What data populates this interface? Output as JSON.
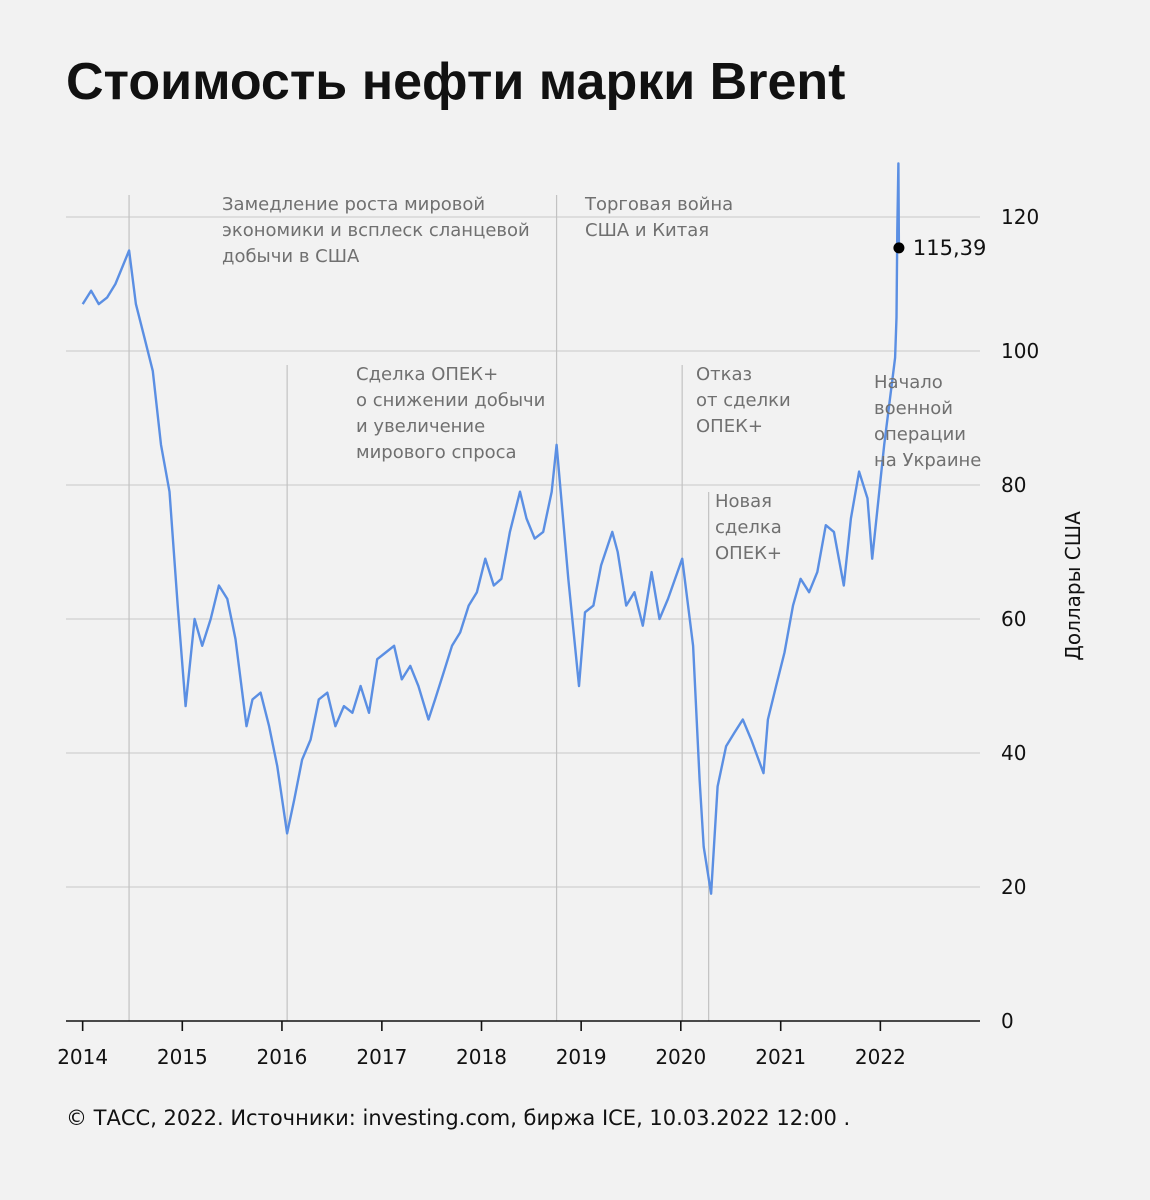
{
  "header": {
    "title": "Стоимость нефти марки Brent"
  },
  "footer": {
    "source": "© ТАСС, 2022. Источники: investing.com, биржа ICE, 10.03.2022 12:00 ."
  },
  "colors": {
    "line": "#5b8fe3",
    "background": "#f2f2f2",
    "grid": "#c8c8c8",
    "annotation": "#707070"
  },
  "chart_data": {
    "type": "line",
    "title": "Стоимость нефти марки Brent",
    "xlabel": "",
    "ylabel": "Доллары США",
    "ylim": [
      0,
      130
    ],
    "xlim": [
      "2013-11-01",
      "2023-01-01"
    ],
    "y_ticks": [
      0,
      20,
      40,
      60,
      80,
      100,
      120
    ],
    "x_ticks": [
      "2014",
      "2015",
      "2016",
      "2017",
      "2018",
      "2019",
      "2020",
      "2021",
      "2022"
    ],
    "grid": true,
    "y_axis_position": "right",
    "series": [
      {
        "x": [
          "2014-01-01",
          "2014-02-01",
          "2014-03-01",
          "2014-04-01",
          "2014-05-01",
          "2014-06-20",
          "2014-07-15",
          "2014-08-15",
          "2014-09-15",
          "2014-10-15",
          "2014-11-15",
          "2014-12-15",
          "2015-01-13",
          "2015-02-15",
          "2015-03-15",
          "2015-04-15",
          "2015-05-15",
          "2015-06-15",
          "2015-07-15",
          "2015-08-24",
          "2015-09-15",
          "2015-10-15",
          "2015-11-15",
          "2015-12-15",
          "2016-01-20",
          "2016-02-15",
          "2016-03-15",
          "2016-04-15",
          "2016-05-15",
          "2016-06-15",
          "2016-07-15",
          "2016-08-15",
          "2016-09-15",
          "2016-10-15",
          "2016-11-15",
          "2016-12-15",
          "2017-01-15",
          "2017-02-15",
          "2017-03-15",
          "2017-04-15",
          "2017-05-15",
          "2017-06-21",
          "2017-07-15",
          "2017-08-15",
          "2017-09-15",
          "2017-10-15",
          "2017-11-15",
          "2017-12-15",
          "2018-01-15",
          "2018-02-15",
          "2018-03-15",
          "2018-04-15",
          "2018-05-22",
          "2018-06-15",
          "2018-07-15",
          "2018-08-15",
          "2018-09-15",
          "2018-10-03",
          "2018-11-15",
          "2018-12-24",
          "2019-01-15",
          "2019-02-15",
          "2019-03-15",
          "2019-04-25",
          "2019-05-15",
          "2019-06-15",
          "2019-07-15",
          "2019-08-15",
          "2019-09-16",
          "2019-10-15",
          "2019-11-15",
          "2020-01-06",
          "2020-02-15",
          "2020-03-10",
          "2020-03-25",
          "2020-04-21",
          "2020-05-15",
          "2020-06-15",
          "2020-07-15",
          "2020-08-15",
          "2020-09-15",
          "2020-10-30",
          "2020-11-15",
          "2020-12-15",
          "2021-01-15",
          "2021-02-15",
          "2021-03-15",
          "2021-04-15",
          "2021-05-15",
          "2021-06-15",
          "2021-07-15",
          "2021-08-20",
          "2021-09-15",
          "2021-10-15",
          "2021-11-15",
          "2021-12-02",
          "2022-01-15",
          "2022-02-15",
          "2022-02-24",
          "2022-03-01",
          "2022-03-04",
          "2022-03-08",
          "2022-03-10"
        ],
        "values": [
          107,
          109,
          107,
          108,
          110,
          115,
          107,
          102,
          97,
          86,
          79,
          62,
          47,
          60,
          56,
          60,
          65,
          63,
          57,
          44,
          48,
          49,
          44,
          38,
          28,
          33,
          39,
          42,
          48,
          49,
          44,
          47,
          46,
          50,
          46,
          54,
          55,
          56,
          51,
          53,
          50,
          45,
          48,
          52,
          56,
          58,
          62,
          64,
          69,
          65,
          66,
          73,
          79,
          75,
          72,
          73,
          79,
          86,
          66,
          50,
          61,
          62,
          68,
          73,
          70,
          62,
          64,
          59,
          67,
          60,
          63,
          69,
          56,
          36,
          26,
          19,
          35,
          41,
          43,
          45,
          42,
          37,
          45,
          50,
          55,
          62,
          66,
          64,
          67,
          74,
          73,
          65,
          75,
          82,
          78,
          69,
          86,
          96,
          99,
          105,
          118,
          128,
          115.39
        ]
      }
    ],
    "last_value": {
      "date": "2022-03-10",
      "value": 115.39,
      "label": "115,39"
    },
    "annotations": [
      {
        "date": "2014-06-20",
        "label": "Замедление роста мировой экономики и всплеск сланцевой добычи в США",
        "lines": [
          "Замедление роста мировой",
          "экономики и всплеск сланцевой",
          "добычи в США"
        ]
      },
      {
        "date": "2016-01-20",
        "label": "Сделка ОПЕК+ о снижении добычи и увеличение мирового спроса",
        "lines": [
          "Сделка ОПЕК+",
          "о снижении добычи",
          "и увеличение",
          "мирового спроса"
        ]
      },
      {
        "date": "2018-10-03",
        "label": "Торговая война США и Китая",
        "lines": [
          "Торговая война",
          "США и Китая"
        ]
      },
      {
        "date": "2020-01-06",
        "label": "Отказ от сделки ОПЕК+",
        "lines": [
          "Отказ",
          "от сделки",
          "ОПЕК+"
        ]
      },
      {
        "date": "2020-04-12",
        "label": "Новая сделка ОПЕК+",
        "lines": [
          "Новая",
          "сделка",
          "ОПЕК+"
        ]
      },
      {
        "date": "2022-02-24",
        "label": "Начало военной операции на Украине",
        "lines": [
          "Начало",
          "военной",
          "операции",
          "на Украине"
        ]
      }
    ]
  }
}
